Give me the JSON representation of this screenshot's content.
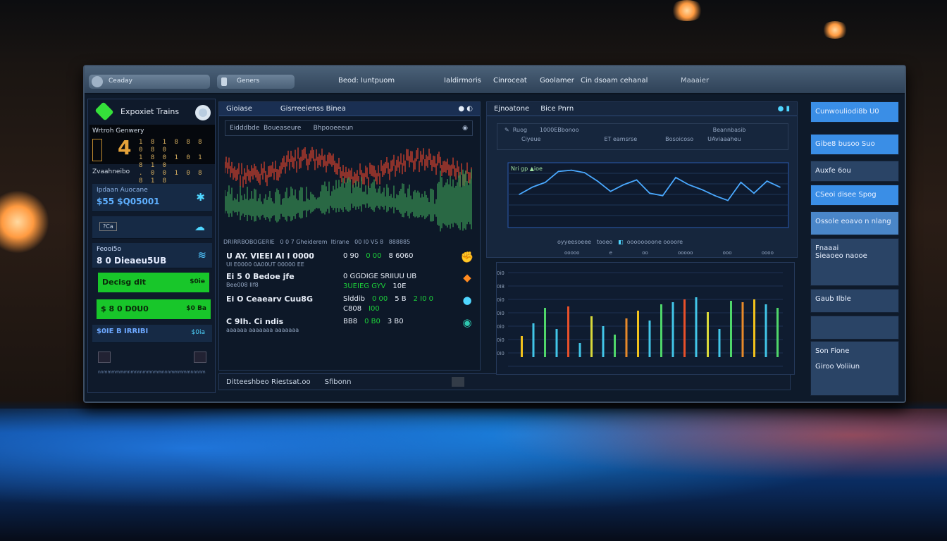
{
  "topbar": {
    "search_placeholder": "Ceaday",
    "pill2": "Geners",
    "items": [
      "Beod: Iuntpuom",
      "Ialdirmoris",
      "Cinroceat",
      "Goolamer",
      "Cin dsoam cehanal",
      "Maaaier"
    ]
  },
  "left": {
    "brand": "Expoxiet Trains",
    "section1": "Wrtroh Genwery",
    "section2": "Zvaahneibo",
    "card1": {
      "label": "Ipdaan Auocane",
      "value": "$55 $Q05001"
    },
    "card2": {
      "label": "?Ca"
    },
    "card3": {
      "label": "Feooi5o",
      "value": "8 0 Dieaeu5UB"
    },
    "btn1": {
      "label": "Decisg dit",
      "right": "$0ie"
    },
    "btn2": {
      "label": "$ 8 0 D0U0",
      "right": "$0 Ba"
    },
    "card4": {
      "label": "$0IE B IRRIBI",
      "right": "$0ia"
    },
    "footer": "nnmmmmmmnmnnnmmnmmnnnmmmmmnnnnm"
  },
  "middle": {
    "tab1": "Gioiase",
    "tab2": "Gisrreeienss Binea",
    "sub": [
      "Eidddbde",
      "Boueaseure",
      "Bhpooeeeun"
    ],
    "chart_footer": [
      "DRIRRBOBOGERIE",
      "0 0 7 Gheiderem",
      "Itirane",
      "00 I0 VS 8",
      "888885"
    ],
    "rows": [
      {
        "name": "U AY. VIEEI AI I 0000",
        "sub": "UI E0000 0A00UT 00000 EE",
        "vals": [
          "0 90",
          "0 00",
          "8 6060"
        ],
        "color": "#1ccf3a"
      },
      {
        "name": "Ei 5 0  Bedoe  jfe",
        "sub": "Bee008 IIf8",
        "vals": [
          "0 GGDIGE SRIIUU UB",
          "3UEIEG GYV",
          "10E"
        ],
        "color": "#1ccf3a"
      },
      {
        "name": "Ei O Ceaearv  Cuu8G",
        "sub": "",
        "vals": [
          "Slddib",
          "0 00",
          "5 B",
          "2 I0 0",
          "C808",
          "I00"
        ],
        "color": "#e42a2a"
      },
      {
        "name": "C 9Ih. Ci ndis",
        "sub": "aaaaaa aaaaaaa aaaaaaa",
        "vals": [
          "BB8",
          "0 B0",
          "3 B0"
        ],
        "color": "#8a5cf0"
      }
    ],
    "bottom": {
      "left": "Ditteeshbeo Riestsat.oo",
      "right": "Sfibonn"
    }
  },
  "right": {
    "tab1": "Ejnoatone",
    "tab2": "Bice Pnrn",
    "table": {
      "headers": [
        "Ruog",
        "1000EBbonoo",
        "Beannbasib"
      ],
      "row": [
        "Ciyeue",
        "ET eamsrse",
        "Bosoicoso",
        "UAviaaaheu"
      ]
    },
    "line_label": "Nri gp ▲ioe",
    "legend": [
      "oyyeesoeee",
      "tooeo",
      "oooooooone oooore"
    ],
    "axis": [
      "ooooo",
      "e oo ooooo",
      "ooo",
      "oooo"
    ],
    "bar_yticks": [
      "0i0",
      "0I8",
      "0i0",
      "0i0",
      "0i0",
      "0i0",
      "0i0"
    ]
  },
  "sidebar": [
    "Cunwouliodi8b  U0",
    "Gibe8 busoo  Suo",
    "Auxfe 6ou",
    "CSeoi disee  Spog",
    "Ossole eoavo n nlang",
    "Fnaaai\nSieaoeo naooe",
    "Gaub Ilble",
    "",
    "Son Fione\n\nGiroo Voliiun"
  ],
  "colors": {
    "accent": "#3a8ee6",
    "green": "#18c62a",
    "red": "#e42a2a",
    "line": "#4aa9ff"
  },
  "chart_data": [
    {
      "type": "line",
      "title": "",
      "series": [
        {
          "values": [
            50,
            62,
            70,
            88,
            90,
            86,
            72,
            55,
            66,
            74,
            52,
            48,
            78,
            66,
            58,
            48,
            40,
            70,
            52,
            72,
            62
          ]
        }
      ]
    },
    {
      "type": "bar",
      "title": "",
      "values": [
        30,
        48,
        70,
        40,
        72,
        20,
        58,
        44,
        32,
        55,
        66,
        52,
        75,
        78,
        82,
        85,
        64,
        40,
        80,
        78,
        82,
        75,
        70
      ]
    }
  ]
}
